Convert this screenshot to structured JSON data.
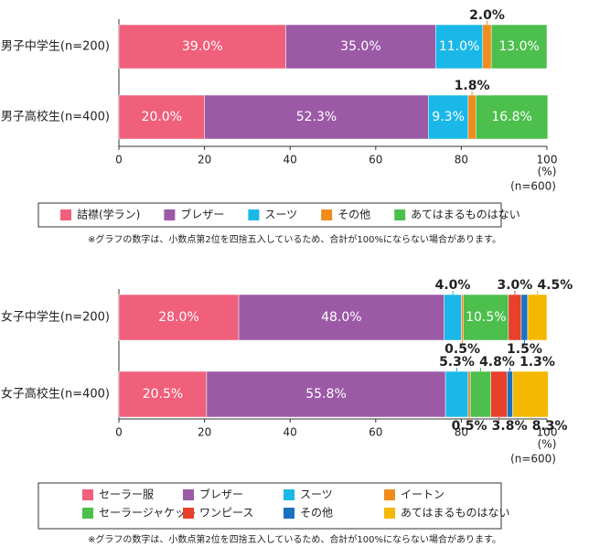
{
  "chart_data": [
    {
      "type": "bar",
      "orientation": "horizontal",
      "stacked": true,
      "categories": [
        "男子中学生(n=200)",
        "男子高校生(n=400)"
      ],
      "series": [
        {
          "name": "詰襟(学ラン)",
          "color": "#f0607a",
          "values": [
            39.0,
            20.0
          ],
          "value_labels": [
            "39.0%",
            "20.0%"
          ]
        },
        {
          "name": "ブレザー",
          "color": "#9b59a6",
          "values": [
            35.0,
            52.3
          ],
          "value_labels": [
            "35.0%",
            "52.3%"
          ]
        },
        {
          "name": "スーツ",
          "color": "#1ab8e8",
          "values": [
            11.0,
            9.3
          ],
          "value_labels": [
            "11.0%",
            "9.3%"
          ]
        },
        {
          "name": "その他",
          "color": "#f08c1e",
          "values": [
            2.0,
            1.8
          ],
          "value_labels": [
            "2.0%",
            "1.8%"
          ]
        },
        {
          "name": "あてはまるものはない",
          "color": "#4cbf4c",
          "values": [
            13.0,
            16.8
          ],
          "value_labels": [
            "13.0%",
            "16.8%"
          ]
        }
      ],
      "xlim": [
        0,
        100
      ],
      "xticks": [
        0,
        20,
        40,
        60,
        80,
        100
      ],
      "x_label": "(%)",
      "sample_size": "(n=600)",
      "note": "※グラフの数字は、小数点第2位を四捨五入しているため、合計が100%にならない場合があります。"
    },
    {
      "type": "bar",
      "orientation": "horizontal",
      "stacked": true,
      "categories": [
        "女子中学生(n=200)",
        "女子高校生(n=400)"
      ],
      "series": [
        {
          "name": "セーラー服",
          "color": "#f0607a",
          "values": [
            28.0,
            20.5
          ],
          "value_labels": [
            "28.0%",
            "20.5%"
          ]
        },
        {
          "name": "ブレザー",
          "color": "#9b59a6",
          "values": [
            48.0,
            55.8
          ],
          "value_labels": [
            "48.0%",
            "55.8%"
          ]
        },
        {
          "name": "スーツ",
          "color": "#1ab8e8",
          "values": [
            4.0,
            5.3
          ],
          "value_labels": [
            "4.0%",
            "5.3%"
          ]
        },
        {
          "name": "イートン",
          "color": "#f08c1e",
          "values": [
            0.5,
            0.5
          ],
          "value_labels": [
            "0.5%",
            "0.5%"
          ]
        },
        {
          "name": "セーラージャケット",
          "color": "#4cbf4c",
          "values": [
            10.5,
            4.8
          ],
          "value_labels": [
            "10.5%",
            "4.8%"
          ]
        },
        {
          "name": "ワンピース",
          "color": "#e8402a",
          "values": [
            3.0,
            3.8
          ],
          "value_labels": [
            "3.0%",
            "3.8%"
          ]
        },
        {
          "name": "その他",
          "color": "#1a72bf",
          "values": [
            1.5,
            1.3
          ],
          "value_labels": [
            "1.5%",
            "1.3%"
          ]
        },
        {
          "name": "あてはまるものはない",
          "color": "#f5b800",
          "values": [
            4.5,
            8.3
          ],
          "value_labels": [
            "4.5%",
            "8.3%"
          ]
        }
      ],
      "xlim": [
        0,
        100
      ],
      "xticks": [
        0,
        20,
        40,
        60,
        80,
        100
      ],
      "x_label": "(%)",
      "sample_size": "(n=600)",
      "note": "※グラフの数字は、小数点第2位を四捨五入しているため、合計が100%にならない場合があります。"
    }
  ]
}
